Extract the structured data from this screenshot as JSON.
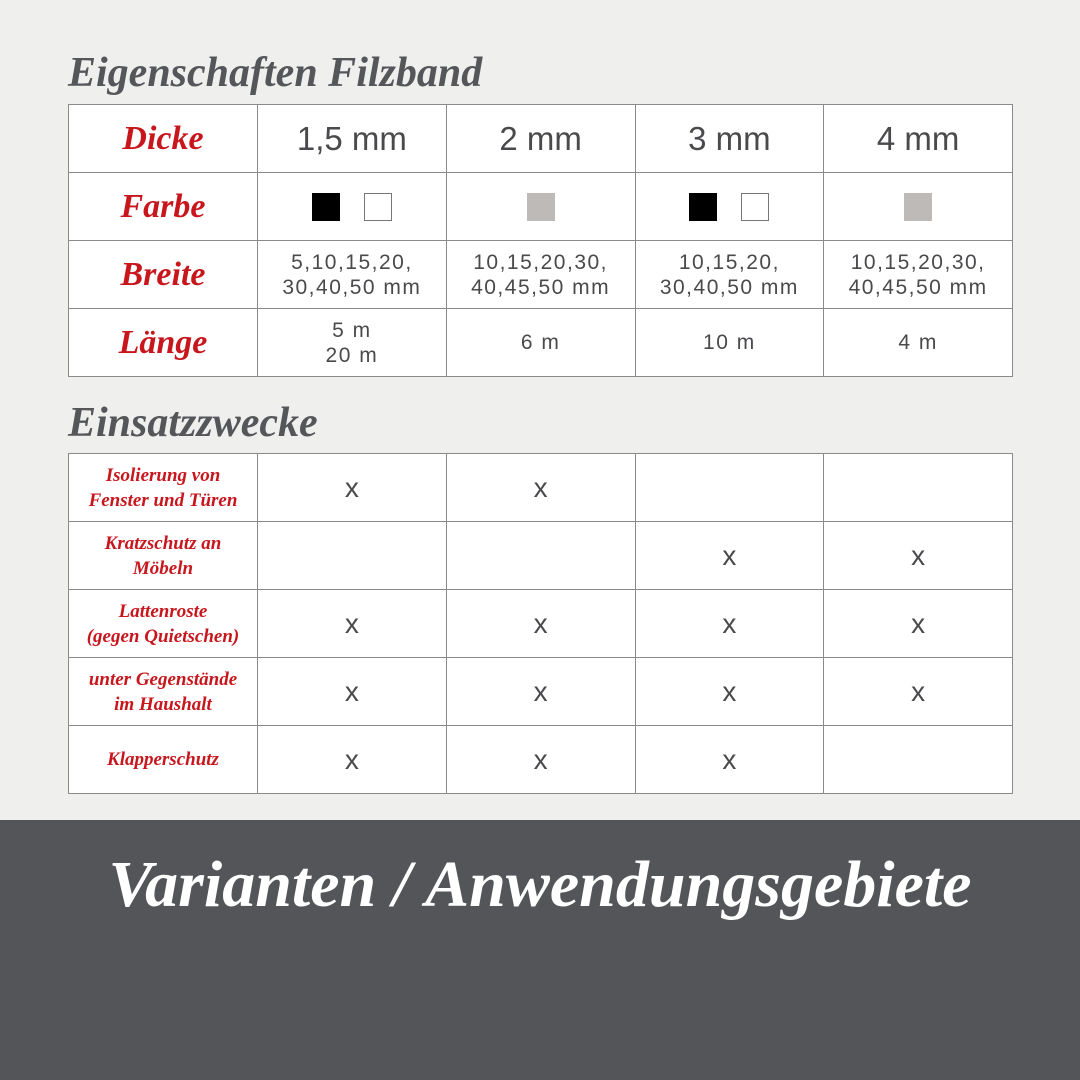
{
  "properties": {
    "title": "Eigenschaften Filzband",
    "rows": {
      "dicke": {
        "label": "Dicke",
        "values": [
          "1,5 mm",
          "2 mm",
          "3 mm",
          "4 mm"
        ]
      },
      "farbe": {
        "label": "Farbe",
        "values": [
          [
            "black",
            "white"
          ],
          [
            "grey"
          ],
          [
            "black",
            "white"
          ],
          [
            "grey"
          ]
        ]
      },
      "breite": {
        "label": "Breite",
        "values": [
          "5,10,15,20,\n30,40,50 mm",
          "10,15,20,30,\n40,45,50 mm",
          "10,15,20,\n30,40,50 mm",
          "10,15,20,30,\n40,45,50 mm"
        ]
      },
      "laenge": {
        "label": "Länge",
        "values": [
          "5 m\n20 m",
          "6 m",
          "10 m",
          "4 m"
        ]
      }
    },
    "colors": {
      "black": "#000000",
      "white": "#ffffff",
      "grey": "#bdbab8"
    }
  },
  "uses": {
    "title": "Einsatzzwecke",
    "rows": [
      {
        "label": "Isolierung von\nFenster und Türen",
        "marks": [
          "x",
          "x",
          "",
          ""
        ]
      },
      {
        "label": "Kratzschutz an\nMöbeln",
        "marks": [
          "",
          "",
          "x",
          "x"
        ]
      },
      {
        "label": "Lattenroste\n(gegen Quietschen)",
        "marks": [
          "x",
          "x",
          "x",
          "x"
        ]
      },
      {
        "label": "unter Gegenstände\nim Haushalt",
        "marks": [
          "x",
          "x",
          "x",
          "x"
        ]
      },
      {
        "label": "Klapperschutz",
        "marks": [
          "x",
          "x",
          "x",
          ""
        ]
      }
    ]
  },
  "banner": {
    "title": "Varianten / Anwendungsgebiete"
  },
  "theme": {
    "accent": "#c8161d",
    "heading": "#55565a",
    "band": "#545559",
    "background": "#efefed"
  }
}
